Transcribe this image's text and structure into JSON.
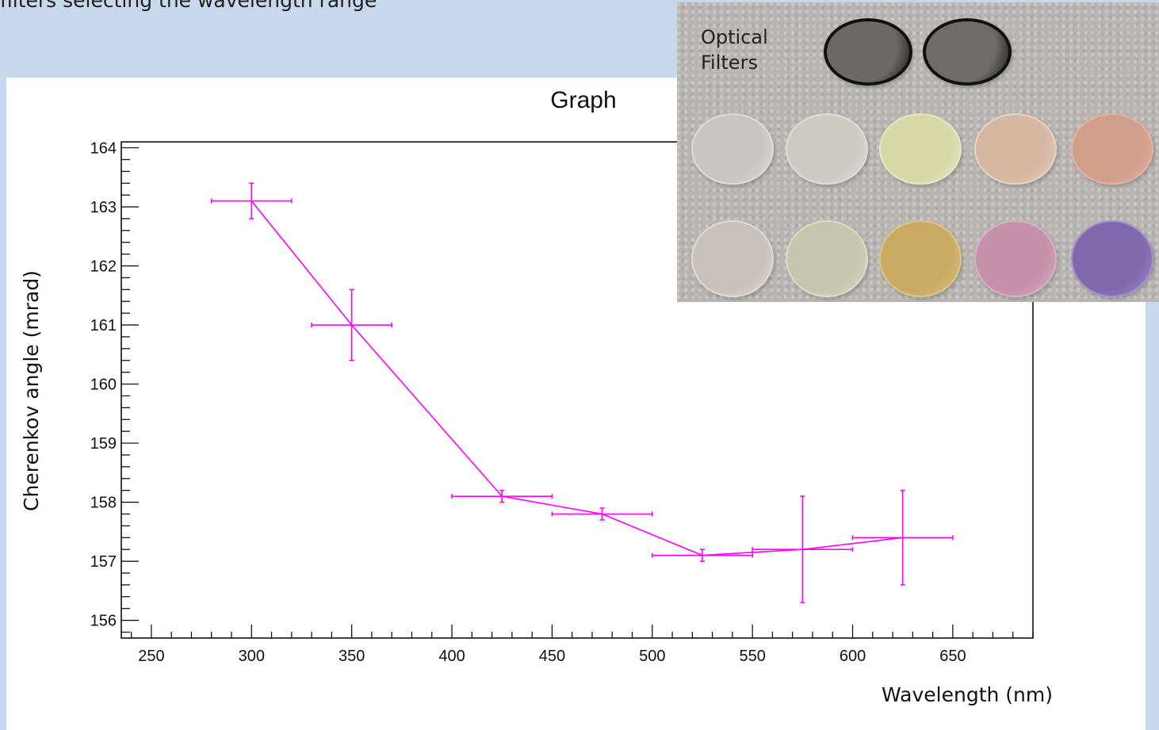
{
  "slide": {
    "heading": "filters selecting the wavelength range"
  },
  "photo": {
    "caption": "Optical\nFilters",
    "discs": [
      {
        "row": 0,
        "col": 0,
        "color": "#6b6a66",
        "rim": "#111111"
      },
      {
        "row": 0,
        "col": 1,
        "color": "#6d6c68",
        "rim": "#111111"
      },
      {
        "row": 1,
        "col": 0,
        "color": "#c7c6c3",
        "rim": "#dedddb"
      },
      {
        "row": 1,
        "col": 1,
        "color": "#cbcbc4",
        "rim": "#dedddb"
      },
      {
        "row": 1,
        "col": 2,
        "color": "#d6d9a6",
        "rim": "#e4e6c8"
      },
      {
        "row": 1,
        "col": 3,
        "color": "#d6b7a2",
        "rim": "#e6d2c6"
      },
      {
        "row": 1,
        "col": 4,
        "color": "#cf9f8c",
        "rim": "#e8b0a0"
      },
      {
        "row": 2,
        "col": 0,
        "color": "#c8c1bb",
        "rim": "#e3dad2"
      },
      {
        "row": 2,
        "col": 1,
        "color": "#c4c7ae",
        "rim": "#dadcc8"
      },
      {
        "row": 2,
        "col": 2,
        "color": "#c8aa63",
        "rim": "#dcc48c"
      },
      {
        "row": 2,
        "col": 3,
        "color": "#c690a8",
        "rim": "#d8b0c4"
      },
      {
        "row": 2,
        "col": 4,
        "color": "#7f68ac",
        "rim": "#a690cc"
      }
    ]
  },
  "chart_data": {
    "type": "scatter",
    "title": "Graph",
    "xlabel": "Wavelength (nm)",
    "ylabel": "Cherenkov angle  (mrad)",
    "xlim": [
      235,
      690
    ],
    "ylim": [
      155.7,
      164.1
    ],
    "x_major_ticks": [
      250,
      300,
      350,
      400,
      450,
      500,
      550,
      600,
      650
    ],
    "x_tick_labels": [
      "250",
      "300",
      "350",
      "400",
      "450",
      "500",
      "550",
      "600",
      "650"
    ],
    "y_major_ticks": [
      156,
      157,
      158,
      159,
      160,
      161,
      162,
      163,
      164
    ],
    "y_tick_labels": [
      "156",
      "157",
      "158",
      "159",
      "160",
      "161",
      "162",
      "163",
      "164"
    ],
    "grid": false,
    "connected": true,
    "color": "#ff00ff",
    "series": [
      {
        "points": [
          {
            "x": 300,
            "y": 163.1,
            "xerr": 20,
            "yerr": 0.3
          },
          {
            "x": 350,
            "y": 161.0,
            "xerr": 20,
            "yerr": 0.6
          },
          {
            "x": 425,
            "y": 158.1,
            "xerr": 25,
            "yerr": 0.1
          },
          {
            "x": 475,
            "y": 157.8,
            "xerr": 25,
            "yerr": 0.1
          },
          {
            "x": 525,
            "y": 157.1,
            "xerr": 25,
            "yerr": 0.1
          },
          {
            "x": 575,
            "y": 157.2,
            "xerr": 25,
            "yerr": 0.9
          },
          {
            "x": 625,
            "y": 157.4,
            "xerr": 25,
            "yerr": 0.8
          }
        ]
      }
    ]
  }
}
